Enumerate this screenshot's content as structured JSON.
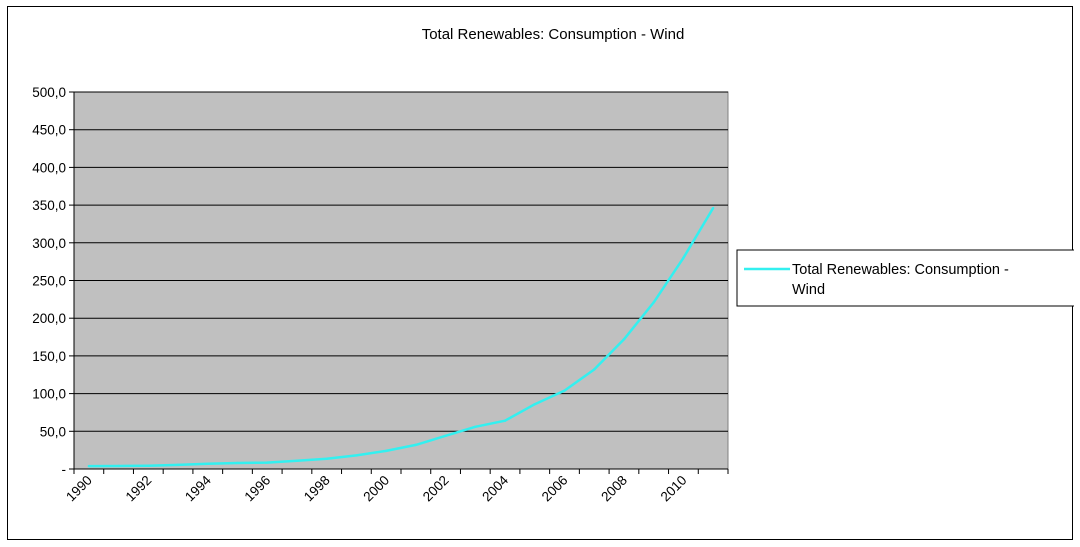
{
  "chart_data": {
    "type": "line",
    "title": "Total Renewables: Consumption - Wind",
    "xlabel": "",
    "ylabel": "",
    "ylim": [
      0,
      500
    ],
    "y_ticks": [
      "-",
      "50,0",
      "100,0",
      "150,0",
      "200,0",
      "250,0",
      "300,0",
      "350,0",
      "400,0",
      "450,0",
      "500,0"
    ],
    "x_tick_labels": [
      "1990",
      "1992",
      "1994",
      "1996",
      "1998",
      "2000",
      "2002",
      "2004",
      "2006",
      "2008",
      "2010"
    ],
    "x": [
      1990,
      1991,
      1992,
      1993,
      1994,
      1995,
      1996,
      1997,
      1998,
      1999,
      2000,
      2001,
      2002,
      2003,
      2004,
      2005,
      2006,
      2007,
      2008,
      2009,
      2010,
      2011
    ],
    "series": [
      {
        "name": "Total Renewables: Consumption - Wind",
        "color": "#33f0f0",
        "values": [
          3.8,
          4.0,
          4.4,
          5.5,
          7.0,
          8.0,
          8.5,
          11.0,
          13.5,
          18.0,
          24.0,
          32.0,
          44.0,
          56.0,
          64.0,
          86.0,
          104.0,
          132.0,
          172.0,
          221.0,
          280.0,
          346.0
        ]
      }
    ],
    "grid": true,
    "plot_background": "#c0c0c0",
    "legend_position": "right"
  }
}
